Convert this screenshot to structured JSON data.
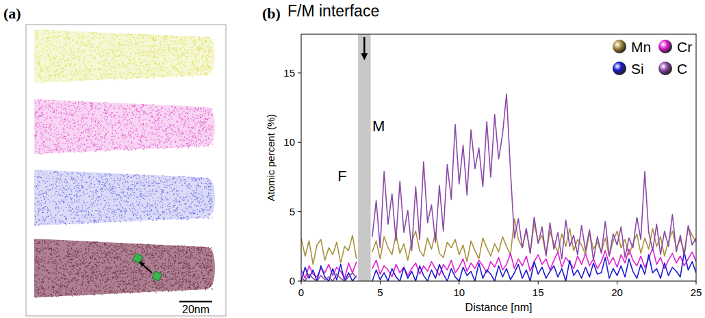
{
  "panel_a": {
    "label": "(a)",
    "scale_bar": "20nm",
    "colors": [
      "#d4dc3c",
      "#e040c8",
      "#5a5ae0",
      "#6a1838"
    ]
  },
  "chart_data": {
    "type": "line",
    "title": "(b)",
    "x_label": "Distance [nm]",
    "y_label": "Atomic percent (%)",
    "annotations": [
      {
        "text": "F/M interface"
      },
      {
        "text": "F",
        "x": 2.6,
        "y": 7.2
      },
      {
        "text": "M",
        "x": 4.9,
        "y": 10.8
      }
    ],
    "interface_band": [
      3.6,
      4.4
    ],
    "xlim": [
      0,
      25
    ],
    "xticks": [
      0,
      5,
      10,
      15,
      20,
      25
    ],
    "ylim": [
      0,
      17.8
    ],
    "yticks": [
      0,
      5,
      10,
      15
    ],
    "legend": "upper right",
    "x": [
      0,
      0.25,
      0.5,
      0.75,
      1,
      1.25,
      1.5,
      1.75,
      2,
      2.25,
      2.5,
      2.75,
      3,
      3.25,
      3.5,
      3.75,
      4,
      4.25,
      4.5,
      4.75,
      5,
      5.25,
      5.5,
      5.75,
      6,
      6.25,
      6.5,
      6.75,
      7,
      7.25,
      7.5,
      7.75,
      8,
      8.25,
      8.5,
      8.75,
      9,
      9.25,
      9.5,
      9.75,
      10,
      10.25,
      10.5,
      10.75,
      11,
      11.25,
      11.5,
      11.75,
      12,
      12.25,
      12.5,
      12.75,
      13,
      13.25,
      13.5,
      13.75,
      14,
      14.25,
      14.5,
      14.75,
      15,
      15.25,
      15.5,
      15.75,
      16,
      16.25,
      16.5,
      16.75,
      17,
      17.25,
      17.5,
      17.75,
      18,
      18.25,
      18.5,
      18.75,
      19,
      19.25,
      19.5,
      19.75,
      20,
      20.25,
      20.5,
      20.75,
      21,
      21.25,
      21.5,
      21.75,
      22,
      22.25,
      22.5,
      22.75,
      23,
      23.25,
      23.5,
      23.75,
      24,
      24.25,
      24.5,
      24.75,
      25
    ],
    "series": [
      {
        "name": "Mn",
        "color": "#a8903c",
        "values": [
          3.1,
          1.8,
          2.9,
          1.2,
          2.6,
          3.0,
          1.5,
          2.4,
          1.9,
          2.8,
          1.3,
          2.5,
          2.2,
          3.3,
          1.6,
          null,
          null,
          null,
          2.1,
          2.9,
          1.6,
          3.2,
          2.4,
          1.9,
          3.4,
          2.0,
          2.7,
          1.5,
          2.9,
          3.6,
          2.2,
          1.8,
          3.1,
          2.3,
          3.5,
          2.0,
          1.7,
          2.8,
          2.4,
          3.0,
          1.9,
          2.6,
          1.4,
          2.9,
          2.2,
          1.6,
          3.1,
          2.4,
          1.8,
          2.7,
          2.1,
          3.2,
          2.5,
          1.9,
          4.5,
          3.0,
          2.4,
          3.7,
          2.0,
          4.2,
          2.8,
          3.3,
          1.9,
          3.6,
          2.7,
          2.1,
          3.4,
          2.5,
          3.8,
          2.2,
          3.0,
          2.6,
          1.9,
          3.5,
          2.3,
          2.8,
          2.1,
          3.1,
          1.8,
          2.9,
          3.6,
          2.4,
          3.0,
          1.9,
          2.7,
          3.4,
          2.0,
          3.1,
          2.3,
          3.8,
          2.5,
          3.2,
          1.8,
          2.9,
          3.6,
          2.4,
          3.0,
          2.1,
          3.9,
          3.3,
          2.8
        ]
      },
      {
        "name": "Cr",
        "color": "#e020d0",
        "values": [
          0.8,
          0.2,
          1.1,
          0.5,
          0.3,
          0.9,
          0.6,
          1.2,
          0.4,
          1.0,
          0.7,
          0.2,
          1.3,
          0.6,
          1.4,
          null,
          null,
          null,
          0.9,
          1.5,
          0.5,
          1.1,
          0.8,
          0.3,
          1.2,
          0.6,
          1.0,
          0.4,
          0.9,
          1.3,
          0.5,
          1.1,
          0.7,
          1.4,
          0.9,
          0.4,
          1.2,
          0.8,
          1.5,
          0.6,
          1.0,
          1.6,
          0.7,
          1.3,
          0.9,
          1.5,
          1.1,
          0.6,
          1.4,
          1.0,
          1.7,
          0.8,
          1.2,
          2.0,
          0.9,
          1.6,
          1.1,
          1.8,
          0.7,
          1.4,
          1.9,
          1.2,
          1.6,
          0.8,
          1.5,
          2.1,
          1.0,
          1.7,
          1.3,
          0.9,
          1.8,
          1.2,
          2.0,
          1.1,
          1.6,
          0.9,
          1.4,
          2.2,
          1.2,
          1.7,
          1.0,
          1.9,
          1.3,
          2.3,
          1.5,
          1.1,
          1.8,
          1.0,
          1.6,
          2.4,
          1.2,
          1.7,
          0.9,
          1.5,
          2.0,
          1.3,
          1.8,
          1.1,
          1.6,
          2.1,
          1.4
        ]
      },
      {
        "name": "Si",
        "color": "#1a1ad0",
        "values": [
          0,
          1.0,
          0.2,
          0.8,
          0,
          1.1,
          0.3,
          0,
          0.9,
          0.1,
          1.2,
          0,
          0.6,
          0,
          0.4,
          null,
          null,
          null,
          0,
          0.8,
          0.1,
          0.6,
          0,
          0.9,
          0.3,
          0,
          1.0,
          0.2,
          0.7,
          0,
          1.1,
          0.4,
          0,
          0.8,
          0.2,
          1.2,
          0.5,
          0,
          0.9,
          0.3,
          0,
          1.0,
          0.4,
          0.7,
          0,
          1.3,
          0.2,
          0.8,
          0.5,
          0,
          1.1,
          0.3,
          0.9,
          0.1,
          0.6,
          1.2,
          0.2,
          0.8,
          0,
          1.4,
          0.5,
          1.0,
          0.2,
          0.7,
          1.1,
          0.3,
          0.9,
          0,
          1.5,
          0.4,
          0.8,
          0.2,
          1.0,
          0.3,
          1.3,
          0.5,
          0.6,
          1.7,
          0.2,
          0.9,
          0.4,
          1.1,
          0.3,
          1.6,
          0.7,
          0.2,
          1.2,
          0.5,
          1.9,
          0.6,
          0.9,
          0.2,
          1.3,
          0.4,
          1.0,
          0.7,
          0.3,
          2.1,
          0.8,
          1.4,
          0.6
        ]
      },
      {
        "name": "C",
        "color": "#8a48a8",
        "values": [
          0.3,
          0,
          0.5,
          0.2,
          0,
          0.4,
          0.1,
          0.3,
          0,
          0.5,
          0.2,
          0,
          0.3,
          0.6,
          0.2,
          null,
          null,
          null,
          3.2,
          5.8,
          2.4,
          7.9,
          4.1,
          6.3,
          2.9,
          7.2,
          3.5,
          5.1,
          2.2,
          6.8,
          3.0,
          8.6,
          4.2,
          5.5,
          2.8,
          6.9,
          3.6,
          8.4,
          5.9,
          11.3,
          7.0,
          9.8,
          6.2,
          10.9,
          8.1,
          9.6,
          6.8,
          11.5,
          7.5,
          12.0,
          8.8,
          10.6,
          13.5,
          7.9,
          3.1,
          4.5,
          2.4,
          3.8,
          2.0,
          4.6,
          2.7,
          3.9,
          1.8,
          4.2,
          2.3,
          3.5,
          1.6,
          4.4,
          2.5,
          3.3,
          1.9,
          4.0,
          2.2,
          3.7,
          1.5,
          3.2,
          2.0,
          4.3,
          1.8,
          3.4,
          2.6,
          3.9,
          1.7,
          3.1,
          2.4,
          4.6,
          3.0,
          7.9,
          3.5,
          2.2,
          4.1,
          1.9,
          3.6,
          2.5,
          4.8,
          2.1,
          3.3,
          1.8,
          4.0,
          2.6,
          3.1
        ]
      }
    ]
  }
}
